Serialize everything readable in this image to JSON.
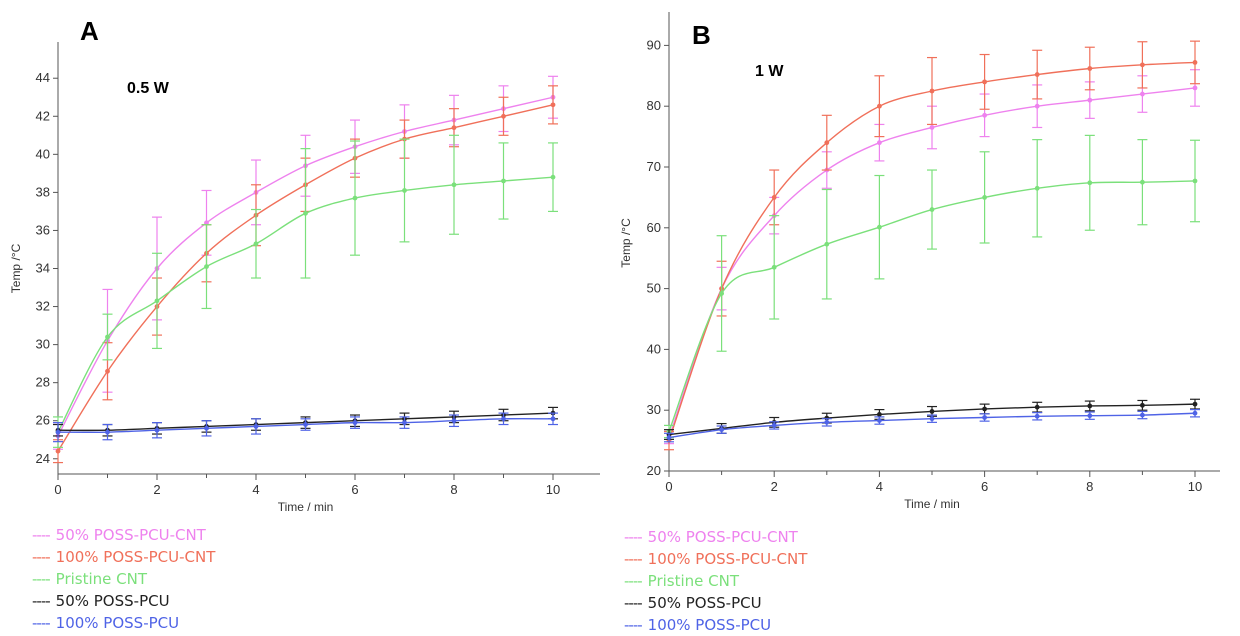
{
  "colors": {
    "50% POSS-PCU-CNT": "#ee82ee",
    "100% POSS-PCU-CNT": "#f0705a",
    "Pristine CNT": "#7be07b",
    "50% POSS-PCU": "#222222",
    "100% POSS-PCU": "#4f63e6"
  },
  "chart_data": [
    {
      "type": "line",
      "panel_label": "A",
      "annotation": "0.5 W",
      "xlabel": "Time / min",
      "ylabel": "Temp /°C",
      "xlim": [
        0,
        10
      ],
      "ylim": [
        23.2,
        44.8
      ],
      "x_ticks": [
        0,
        2,
        4,
        6,
        8,
        10
      ],
      "y_ticks": [
        24,
        26,
        28,
        30,
        32,
        34,
        36,
        38,
        40,
        42,
        44
      ],
      "grid": false,
      "legend_position": "bottom-left",
      "legend": [
        "50% POSS-PCU-CNT",
        "100% POSS-PCU-CNT",
        "Pristine CNT",
        "50% POSS-PCU",
        "100% POSS-PCU"
      ],
      "x": [
        0,
        1,
        2,
        3,
        4,
        5,
        6,
        7,
        8,
        9,
        10
      ],
      "series": [
        {
          "name": "50% POSS-PCU-CNT",
          "values": [
            25.2,
            30.2,
            34.0,
            36.4,
            38.0,
            39.4,
            40.4,
            41.2,
            41.8,
            42.4,
            43.0
          ],
          "errors": [
            0.7,
            2.7,
            2.7,
            1.7,
            1.7,
            1.6,
            1.4,
            1.4,
            1.3,
            1.2,
            1.1
          ]
        },
        {
          "name": "100% POSS-PCU-CNT",
          "values": [
            24.4,
            28.6,
            32.0,
            34.8,
            36.8,
            38.4,
            39.8,
            40.8,
            41.4,
            42.0,
            42.6
          ],
          "errors": [
            0.6,
            1.5,
            1.5,
            1.5,
            1.6,
            1.4,
            1.0,
            1.0,
            1.0,
            1.0,
            1.0
          ]
        },
        {
          "name": "Pristine CNT",
          "values": [
            25.4,
            30.4,
            32.3,
            34.1,
            35.3,
            36.9,
            37.7,
            38.1,
            38.4,
            38.6,
            38.8
          ],
          "errors": [
            0.8,
            1.2,
            2.5,
            2.2,
            1.8,
            3.4,
            3.0,
            2.7,
            2.6,
            2.0,
            1.8
          ]
        },
        {
          "name": "50% POSS-PCU",
          "values": [
            25.5,
            25.5,
            25.6,
            25.7,
            25.8,
            25.9,
            26.0,
            26.1,
            26.2,
            26.3,
            26.4
          ],
          "errors": [
            0.3,
            0.3,
            0.3,
            0.3,
            0.3,
            0.3,
            0.3,
            0.3,
            0.3,
            0.3,
            0.3
          ]
        },
        {
          "name": "100% POSS-PCU",
          "values": [
            25.4,
            25.4,
            25.5,
            25.6,
            25.7,
            25.8,
            25.9,
            25.9,
            26.0,
            26.1,
            26.1
          ],
          "errors": [
            0.5,
            0.4,
            0.4,
            0.4,
            0.4,
            0.3,
            0.3,
            0.3,
            0.3,
            0.3,
            0.3
          ]
        }
      ]
    },
    {
      "type": "line",
      "panel_label": "B",
      "annotation": "1 W",
      "xlabel": "Time / min",
      "ylabel": "Temp /°C",
      "xlim": [
        0,
        10
      ],
      "ylim": [
        20,
        95
      ],
      "x_ticks": [
        0,
        2,
        4,
        6,
        8,
        10
      ],
      "y_ticks": [
        20,
        30,
        40,
        50,
        60,
        70,
        80,
        90
      ],
      "grid": false,
      "legend_position": "bottom-left",
      "legend": [
        "50% POSS-PCU-CNT",
        "100% POSS-PCU-CNT",
        "Pristine CNT",
        "50% POSS-PCU",
        "100% POSS-PCU"
      ],
      "x": [
        0,
        1,
        2,
        3,
        4,
        5,
        6,
        7,
        8,
        9,
        10
      ],
      "series": [
        {
          "name": "50% POSS-PCU-CNT",
          "values": [
            25.5,
            50.0,
            62.0,
            69.5,
            74.0,
            76.5,
            78.5,
            80.0,
            81.0,
            82.0,
            83.0
          ],
          "errors": [
            1.0,
            3.5,
            3.0,
            3.0,
            3.0,
            3.5,
            3.5,
            3.5,
            3.0,
            3.0,
            3.0
          ]
        },
        {
          "name": "100% POSS-PCU-CNT",
          "values": [
            25.0,
            50.0,
            65.0,
            74.0,
            80.0,
            82.5,
            84.0,
            85.2,
            86.2,
            86.8,
            87.2
          ],
          "errors": [
            1.5,
            4.5,
            4.5,
            4.5,
            5.0,
            5.5,
            4.5,
            4.0,
            3.5,
            3.8,
            3.5
          ]
        },
        {
          "name": "Pristine CNT",
          "values": [
            26.5,
            49.2,
            53.5,
            57.3,
            60.1,
            63.0,
            65.0,
            66.5,
            67.4,
            67.5,
            67.7
          ],
          "errors": [
            1.0,
            9.5,
            8.5,
            9.0,
            8.5,
            6.5,
            7.5,
            8.0,
            7.8,
            7.0,
            6.7
          ]
        },
        {
          "name": "50% POSS-PCU",
          "values": [
            26.0,
            27.0,
            28.0,
            28.7,
            29.3,
            29.8,
            30.2,
            30.5,
            30.7,
            30.8,
            31.0
          ],
          "errors": [
            0.8,
            0.8,
            0.8,
            0.8,
            0.8,
            0.8,
            0.8,
            0.8,
            0.8,
            0.8,
            0.8
          ]
        },
        {
          "name": "100% POSS-PCU",
          "values": [
            25.5,
            26.8,
            27.5,
            28.0,
            28.3,
            28.6,
            28.8,
            29.0,
            29.1,
            29.2,
            29.5
          ],
          "errors": [
            0.7,
            0.6,
            0.6,
            0.6,
            0.6,
            0.6,
            0.6,
            0.6,
            0.6,
            0.6,
            0.6
          ]
        }
      ]
    }
  ]
}
